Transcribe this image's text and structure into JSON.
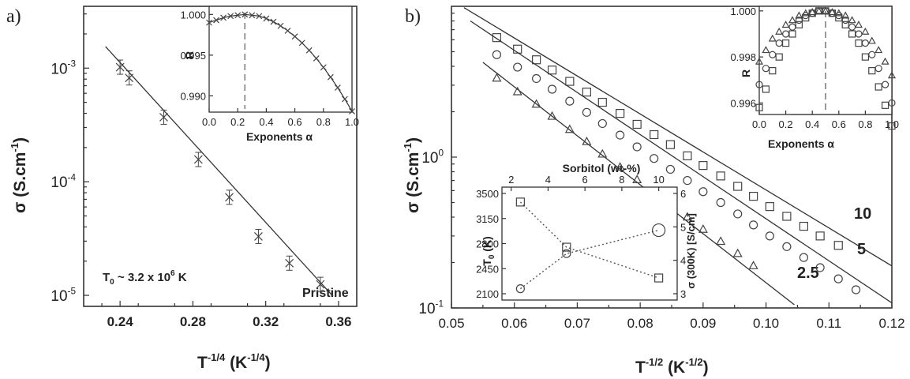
{
  "panel_a": {
    "label": "a)",
    "ylabel_main": "σ (S.cm",
    "ylabel_sup": "-1",
    "ylabel_end": ")",
    "xlabel_main": "T",
    "xlabel_sup": "-1/4",
    "xlabel_unit": " (K",
    "xlabel_unit_sup": "-1/4",
    "xlabel_end": ")",
    "annotation_t0": "T",
    "annotation_t0_sub": "0",
    "annotation_rest": " ~ 3.2 x 10",
    "annotation_exp": "6",
    "annotation_unit": " K",
    "series_label": "Pristine",
    "inset_ylabel": "R",
    "inset_xlabel": "Exponents α"
  },
  "panel_b": {
    "label": "b)",
    "ylabel_main": "σ (S.cm",
    "ylabel_sup": "-1",
    "ylabel_end": ")",
    "xlabel_main": "T",
    "xlabel_sup": "-1/2",
    "xlabel_unit": " (K",
    "xlabel_unit_sup": "-1/2",
    "xlabel_end": ")",
    "series_labels": [
      "10",
      "5",
      "2.5"
    ],
    "inset_ylabel": "R",
    "inset_xlabel": "Exponents α",
    "inset2_top_label": "Sorbitol (wt-%)",
    "inset2_left_label": "T",
    "inset2_left_sub": "0",
    "inset2_left_unit": " (K)",
    "inset2_right_label": "σ (300K) [S/cm]"
  },
  "colors": {
    "line": "#333333",
    "marker": "#444444",
    "dash": "#999999"
  },
  "chart_data": [
    {
      "type": "scatter",
      "panel": "a",
      "x": [
        0.24,
        0.245,
        0.264,
        0.283,
        0.3,
        0.316,
        0.333,
        0.35
      ],
      "values": [
        0.00102,
        0.00082,
        0.00037,
        0.000157,
        7.3e-05,
        3.3e-05,
        1.92e-05,
        1.25e-05
      ],
      "fit_line": {
        "x": [
          0.232,
          0.357
        ],
        "y": [
          0.00155,
          9.8e-06
        ]
      },
      "xlabel": "T-1/4 (K-1/4)",
      "ylabel": "σ (S.cm-1)",
      "xlim": [
        0.22,
        0.37
      ],
      "ylim": [
        8e-06,
        0.0035
      ],
      "yscale": "log",
      "xticks": [
        "0.24",
        "0.28",
        "0.32",
        "0.36"
      ],
      "yticks": [
        "10-3",
        "10-4",
        "10-5"
      ],
      "annotations": [
        "T0 ~ 3.2 x 10^6 K",
        "Pristine"
      ]
    },
    {
      "type": "line",
      "panel": "a-inset",
      "x": [
        0.0,
        0.05,
        0.1,
        0.15,
        0.2,
        0.25,
        0.3,
        0.35,
        0.4,
        0.45,
        0.5,
        0.55,
        0.6,
        0.65,
        0.7,
        0.75,
        0.8,
        0.85,
        0.9,
        0.95,
        1.0
      ],
      "values": [
        0.999,
        0.9993,
        0.9996,
        0.9998,
        0.9999,
        1.0,
        0.9999,
        0.9998,
        0.9995,
        0.9991,
        0.9986,
        0.998,
        0.9973,
        0.9965,
        0.9956,
        0.9946,
        0.9935,
        0.9923,
        0.991,
        0.9896,
        0.9881
      ],
      "xlabel": "Exponents α",
      "ylabel": "R",
      "xlim": [
        0.0,
        1.0
      ],
      "ylim": [
        0.988,
        1.001
      ],
      "xticks": [
        "0.0",
        "0.2",
        "0.4",
        "0.6",
        "0.8",
        "1.0"
      ],
      "yticks": [
        "1.000",
        "0.995",
        "0.990"
      ],
      "marked_x": 0.25
    },
    {
      "type": "scatter",
      "panel": "b",
      "yscale": "log",
      "xlabel": "T-1/2 (K-1/2)",
      "ylabel": "σ (S.cm-1)",
      "xlim": [
        0.05,
        0.12
      ],
      "ylim": [
        0.1,
        10
      ],
      "xticks": [
        "0.05",
        "0.06",
        "0.07",
        "0.08",
        "0.09",
        "0.10",
        "0.11",
        "0.12"
      ],
      "yticks": [
        "10^0",
        "10^-1"
      ],
      "series": [
        {
          "name": "10",
          "marker": "square",
          "x": [
            0.0572,
            0.0605,
            0.0635,
            0.066,
            0.0688,
            0.0715,
            0.074,
            0.0768,
            0.0795,
            0.0822,
            0.0848,
            0.0875,
            0.09,
            0.0928,
            0.0955,
            0.098,
            0.1006,
            0.1033,
            0.106,
            0.1086,
            0.1115
          ],
          "values": [
            6.2,
            5.2,
            4.42,
            3.78,
            3.18,
            2.7,
            2.31,
            1.95,
            1.65,
            1.41,
            1.21,
            1.02,
            0.88,
            0.75,
            0.64,
            0.55,
            0.47,
            0.405,
            0.348,
            0.3,
            0.26
          ],
          "fit_line": {
            "x": [
              0.052,
              0.12
            ],
            "y": [
              9.8,
              0.19
            ]
          }
        },
        {
          "name": "5",
          "marker": "circle",
          "x": [
            0.0572,
            0.0605,
            0.0635,
            0.066,
            0.0688,
            0.0715,
            0.074,
            0.0768,
            0.0795,
            0.0822,
            0.0848,
            0.0875,
            0.09,
            0.0928,
            0.0955,
            0.098,
            0.1006,
            0.1033,
            0.106,
            0.1086,
            0.1115,
            0.1143
          ],
          "values": [
            4.78,
            3.95,
            3.32,
            2.82,
            2.35,
            1.98,
            1.67,
            1.4,
            1.17,
            0.98,
            0.83,
            0.7,
            0.59,
            0.5,
            0.42,
            0.355,
            0.3,
            0.255,
            0.216,
            0.185,
            0.156,
            0.132
          ],
          "fit_line": {
            "x": [
              0.053,
              0.12
            ],
            "y": [
              8.0,
              0.108
            ]
          }
        },
        {
          "name": "2.5",
          "marker": "triangle",
          "x": [
            0.0572,
            0.0605,
            0.0635,
            0.066,
            0.0688,
            0.0715,
            0.074,
            0.0768,
            0.0795,
            0.0822,
            0.0848,
            0.0875,
            0.09,
            0.0928,
            0.0955,
            0.098
          ],
          "values": [
            3.35,
            2.72,
            2.25,
            1.87,
            1.53,
            1.27,
            1.05,
            0.86,
            0.71,
            0.585,
            0.485,
            0.402,
            0.333,
            0.277,
            0.23,
            0.191
          ],
          "fit_line": {
            "x": [
              0.055,
              0.1045
            ],
            "y": [
              4.25,
              0.105
            ]
          }
        }
      ]
    },
    {
      "type": "line",
      "panel": "b-inset",
      "xlabel": "Exponents α",
      "ylabel": "R",
      "xlim": [
        0.0,
        1.0
      ],
      "ylim": [
        0.9955,
        1.0002
      ],
      "xticks": [
        "0.0",
        "0.2",
        "0.4",
        "0.6",
        "0.8",
        "1.0"
      ],
      "yticks": [
        "1.000",
        "0.998",
        "0.996"
      ],
      "marked_x": 0.5,
      "series": [
        {
          "name": "triangles",
          "values": [
            0.9978,
            0.9983,
            0.9988,
            0.9991,
            0.9994,
            0.9996,
            0.9998,
            0.9999,
            0.99995,
            1.0,
            1.0,
            0.99995,
            0.9999,
            0.9998,
            0.9996,
            0.9994,
            0.9991,
            0.9987,
            0.9983,
            0.9978,
            0.9972
          ],
          "x": [
            0.0,
            0.05,
            0.1,
            0.15,
            0.2,
            0.25,
            0.3,
            0.35,
            0.4,
            0.45,
            0.5,
            0.55,
            0.6,
            0.65,
            0.7,
            0.75,
            0.8,
            0.85,
            0.9,
            0.95,
            1.0
          ]
        },
        {
          "name": "circles",
          "values": [
            0.9968,
            0.9975,
            0.9981,
            0.9986,
            0.999,
            0.9993,
            0.9996,
            0.9998,
            0.9999,
            1.0,
            1.0,
            0.9999,
            0.9998,
            0.9996,
            0.9993,
            0.999,
            0.9986,
            0.9981,
            0.9975,
            0.9968,
            0.996
          ],
          "x": [
            0.0,
            0.05,
            0.1,
            0.15,
            0.2,
            0.25,
            0.3,
            0.35,
            0.4,
            0.45,
            0.5,
            0.55,
            0.6,
            0.65,
            0.7,
            0.75,
            0.8,
            0.85,
            0.9,
            0.95,
            1.0
          ]
        },
        {
          "name": "squares",
          "values": [
            0.9958,
            0.9966,
            0.9974,
            0.998,
            0.9986,
            0.999,
            0.9994,
            0.9997,
            0.9999,
            1.0,
            1.0,
            0.9999,
            0.9997,
            0.9994,
            0.999,
            0.9986,
            0.998,
            0.9974,
            0.9967,
            0.9959,
            0.995
          ],
          "x": [
            0.0,
            0.05,
            0.1,
            0.15,
            0.2,
            0.25,
            0.3,
            0.35,
            0.4,
            0.45,
            0.5,
            0.55,
            0.6,
            0.65,
            0.7,
            0.75,
            0.8,
            0.85,
            0.9,
            0.95,
            1.0
          ]
        }
      ]
    },
    {
      "type": "line",
      "panel": "b-inset2",
      "xlabel": "Sorbitol (wt-%)",
      "ylabel_left": "T0 (K)",
      "ylabel_right": "σ (300K) [S/cm]",
      "xlim": [
        1.5,
        11
      ],
      "ylim_left": [
        2100,
        3500
      ],
      "ylim_right": [
        3,
        6
      ],
      "xticks": [
        "2",
        "4",
        "6",
        "8",
        "10"
      ],
      "yticks_left": [
        "3500",
        "3150",
        "2800",
        "2450",
        "2100"
      ],
      "yticks_right": [
        "6",
        "5",
        "4",
        "3"
      ],
      "series": [
        {
          "name": "T0",
          "axis": "left",
          "marker": "square",
          "x": [
            2.5,
            5,
            10
          ],
          "values": [
            3380,
            2750,
            2320
          ]
        },
        {
          "name": "σ(300K)",
          "axis": "right",
          "marker": "circle",
          "x": [
            2.5,
            5,
            10
          ],
          "values": [
            3.15,
            4.2,
            4.9
          ]
        }
      ]
    }
  ]
}
